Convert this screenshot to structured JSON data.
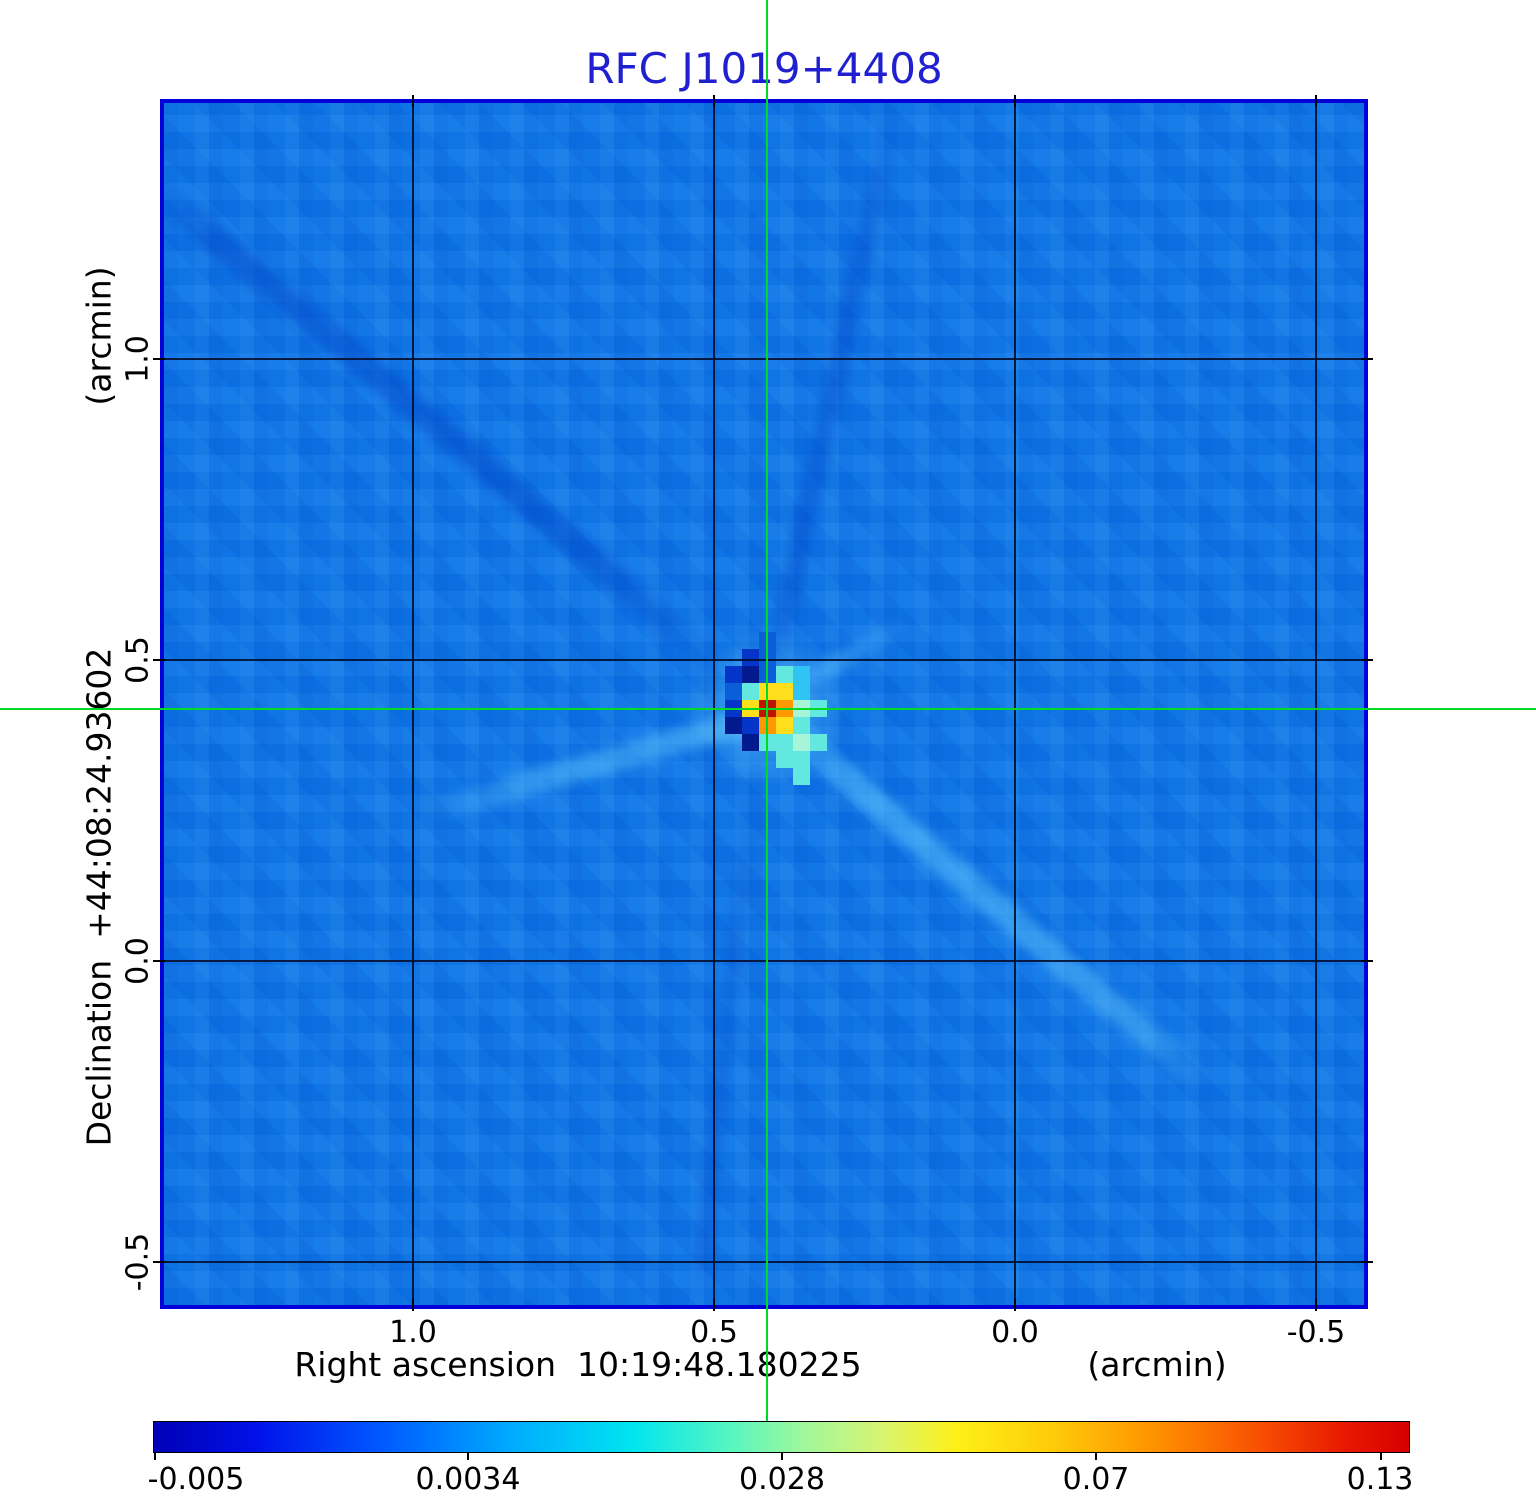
{
  "title": {
    "text": "RFC J1019+4408"
  },
  "colors": {
    "title": "#2020d0",
    "frame": "#0000d8",
    "crosshair": "#00d926",
    "sky_background": "#0b76e8"
  },
  "axes": {
    "y": {
      "unit": "(arcmin)",
      "label": "Declination  +44:08:24.93602",
      "ticks": [
        "1.0",
        "0.5",
        "0.0",
        "-0.5"
      ]
    },
    "x": {
      "unit": "(arcmin)",
      "label": "Right ascension  10:19:48.180225",
      "ticks": [
        "1.0",
        "0.5",
        "0.0",
        "-0.5"
      ]
    }
  },
  "colorbar": {
    "tick_labels": [
      "-0.005",
      "0.0034",
      "0.028",
      "0.07",
      "0.13"
    ],
    "gradient": [
      [
        "0%",
        "#0000b6"
      ],
      [
        "8%",
        "#0010e8"
      ],
      [
        "18%",
        "#0058ff"
      ],
      [
        "28%",
        "#00a8ff"
      ],
      [
        "38%",
        "#00e4f0"
      ],
      [
        "46%",
        "#58f6c0"
      ],
      [
        "52%",
        "#a2f79a"
      ],
      [
        "58%",
        "#d8f472"
      ],
      [
        "64%",
        "#fdf017"
      ],
      [
        "72%",
        "#ffc908"
      ],
      [
        "80%",
        "#ff9000"
      ],
      [
        "88%",
        "#f85002"
      ],
      [
        "95%",
        "#e81800"
      ],
      [
        "100%",
        "#d60000"
      ]
    ]
  },
  "chart_data": {
    "type": "heatmap",
    "title": "RFC J1019+4408",
    "xlabel": "Right ascension 10:19:48.180225 (arcmin)",
    "ylabel": "Declination +44:08:24.93602 (arcmin)",
    "x_ticks_arcmin": [
      1.0,
      0.5,
      0.0,
      -0.5
    ],
    "y_ticks_arcmin": [
      1.0,
      0.5,
      0.0,
      -0.5
    ],
    "x_range_arcmin": [
      1.41,
      -0.58
    ],
    "y_range_arcmin": [
      -0.57,
      1.43
    ],
    "grid": true,
    "colorbar_values": [
      -0.005,
      0.0034,
      0.028,
      0.07,
      0.13
    ],
    "background_value": 0.0,
    "peak_value": 0.13,
    "source_position": {
      "ra": "10:19:48.180225",
      "dec": "+44:08:24.93602",
      "x_arcmin": 0.41,
      "y_arcmin": 0.42
    },
    "source_pixels": {
      "cell": 17,
      "origin": [
        527,
        529
      ],
      "palette": {
        "d": "#0a5fd8",
        "n": "#0534c8",
        "N": "#021a8e",
        "c": "#63e8e0",
        "C": "#2fc4f4",
        "t": "#a8f4d8",
        "y": "#ffdf1c",
        "o": "#ff9800",
        "r": "#f05a00",
        "R": "#bb1500"
      },
      "rows": [
        "....d....",
        "...nd....",
        "..nNdcC..",
        "..dcyyC..",
        "..nyRotc.",
        "..Nnoyc..",
        "...Ncctc.",
        ".....cc..",
        "......c.."
      ]
    }
  }
}
